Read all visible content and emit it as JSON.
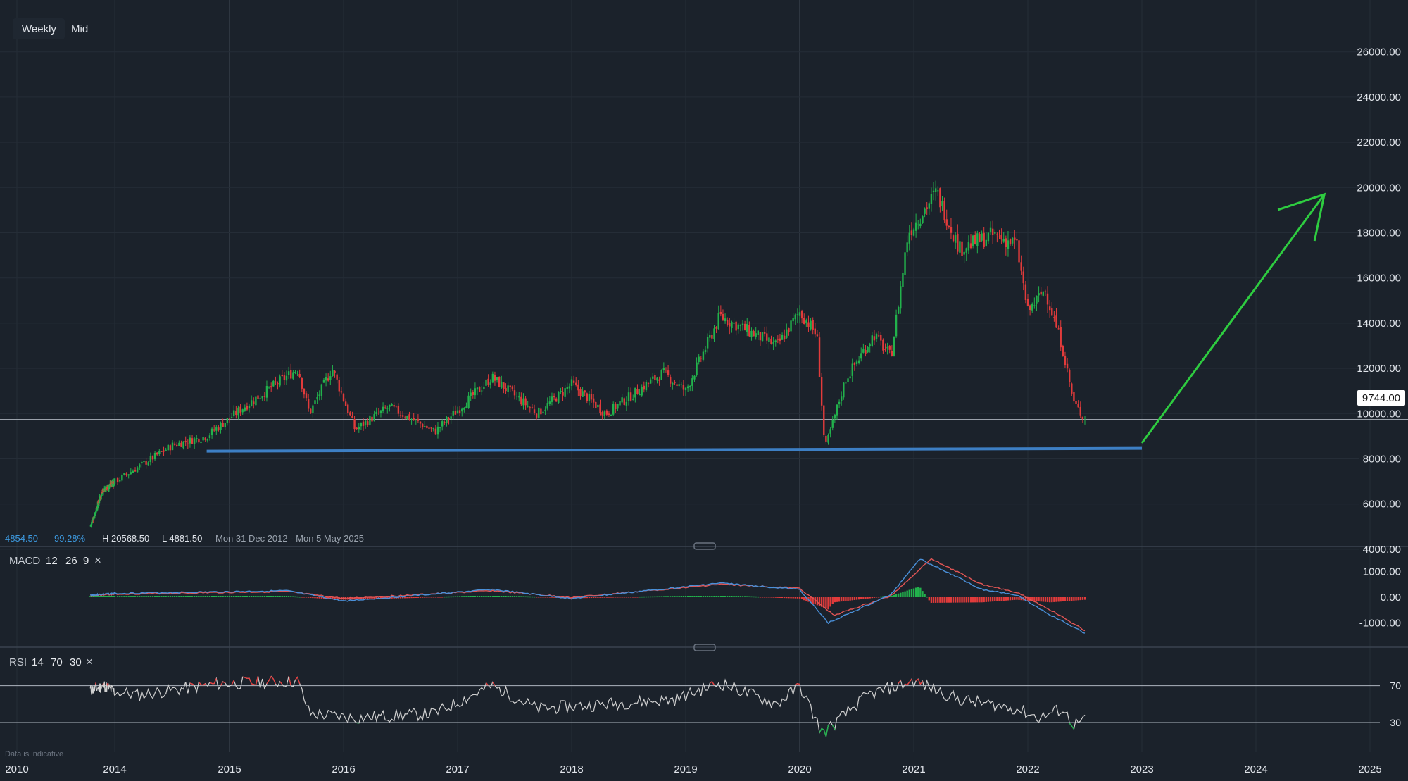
{
  "toolbar": {
    "timeframe": "Weekly",
    "price_type": "Mid"
  },
  "price_info": {
    "last": "4854.50",
    "pct": "99.28%",
    "high": "H 20568.50",
    "low": "L 4881.50",
    "range": "Mon 31 Dec 2012 - Mon 5 May 2025"
  },
  "current_price_label": "9744.00",
  "footer_note": "Data is indicative",
  "indicators": {
    "macd": {
      "name": "MACD",
      "params": [
        "12",
        "26",
        "9"
      ],
      "close": "×"
    },
    "rsi": {
      "name": "RSI",
      "params": [
        "14",
        "70",
        "30"
      ],
      "close": "×"
    }
  },
  "colors": {
    "background": "#1b222b",
    "bull": "#22b24c",
    "bear": "#e23b3b",
    "support_line": "#3d7fc4",
    "arrow": "#2ecc40",
    "macd_line": "#4a90d9",
    "signal_line": "#e25555",
    "rsi_line": "#d0d0d0"
  },
  "chart_data": {
    "type": "candlestick",
    "instrument_timeframe": "Weekly",
    "x_axis": {
      "ticks": [
        "2010",
        "2014",
        "2015",
        "2016",
        "2017",
        "2018",
        "2019",
        "2020",
        "2021",
        "2022",
        "2023",
        "2024",
        "2025"
      ]
    },
    "y_axis": {
      "ticks": [
        "4000.00",
        "6000.00",
        "8000.00",
        "10000.00",
        "12000.00",
        "14000.00",
        "16000.00",
        "18000.00",
        "20000.00",
        "22000.00",
        "24000.00",
        "26000.00"
      ],
      "range": [
        3500,
        27000
      ]
    },
    "price_path": [
      [
        2013.0,
        5000
      ],
      [
        2013.5,
        6600
      ],
      [
        2014.0,
        7000
      ],
      [
        2014.5,
        8600
      ],
      [
        2014.8,
        9000
      ],
      [
        2015.1,
        10200
      ],
      [
        2015.6,
        12000
      ],
      [
        2015.7,
        10000
      ],
      [
        2015.9,
        12000
      ],
      [
        2016.1,
        9300
      ],
      [
        2016.4,
        10300
      ],
      [
        2016.8,
        9200
      ],
      [
        2017.3,
        11600
      ],
      [
        2017.7,
        10000
      ],
      [
        2018.0,
        11300
      ],
      [
        2018.3,
        10000
      ],
      [
        2018.8,
        11800
      ],
      [
        2019.0,
        11000
      ],
      [
        2019.3,
        14300
      ],
      [
        2019.8,
        13000
      ],
      [
        2020.0,
        14500
      ],
      [
        2020.15,
        13500
      ],
      [
        2020.22,
        8400
      ],
      [
        2020.4,
        11500
      ],
      [
        2020.65,
        13500
      ],
      [
        2020.8,
        12500
      ],
      [
        2020.95,
        18000
      ],
      [
        2021.2,
        19800
      ],
      [
        2021.4,
        17300
      ],
      [
        2021.7,
        17900
      ],
      [
        2021.9,
        17500
      ],
      [
        2022.0,
        14500
      ],
      [
        2022.15,
        15500
      ],
      [
        2022.3,
        13000
      ],
      [
        2022.4,
        10500
      ],
      [
        2022.5,
        9744
      ]
    ],
    "high": 20568.5,
    "low": 4881.5,
    "last_price": 9744,
    "support_level": {
      "value": 8400,
      "from": 2014.8,
      "to": 2023.0
    },
    "projection_arrow": {
      "from": [
        2023.0,
        8700
      ],
      "to": [
        2024.6,
        19700
      ]
    },
    "macd": {
      "params": [
        12,
        26,
        9
      ],
      "y_ticks": [
        "1000.00",
        "0.00",
        "-1000.00"
      ],
      "macd_path": [
        [
          2013.0,
          80
        ],
        [
          2015.5,
          250
        ],
        [
          2016.0,
          -150
        ],
        [
          2017.3,
          300
        ],
        [
          2018.0,
          -50
        ],
        [
          2019.3,
          550
        ],
        [
          2020.0,
          300
        ],
        [
          2020.25,
          -1000
        ],
        [
          2020.8,
          100
        ],
        [
          2021.05,
          1500
        ],
        [
          2021.6,
          300
        ],
        [
          2021.9,
          100
        ],
        [
          2022.2,
          -700
        ],
        [
          2022.5,
          -1400
        ]
      ],
      "signal_path": [
        [
          2013.0,
          60
        ],
        [
          2015.5,
          220
        ],
        [
          2016.0,
          -50
        ],
        [
          2017.3,
          250
        ],
        [
          2018.0,
          -10
        ],
        [
          2019.3,
          500
        ],
        [
          2020.0,
          350
        ],
        [
          2020.3,
          -700
        ],
        [
          2020.8,
          50
        ],
        [
          2021.15,
          1500
        ],
        [
          2021.6,
          500
        ],
        [
          2021.9,
          200
        ],
        [
          2022.2,
          -500
        ],
        [
          2022.5,
          -1300
        ]
      ]
    },
    "rsi": {
      "params": [
        14,
        70,
        30
      ],
      "levels": [
        70,
        30
      ],
      "y_ticks": [
        "70",
        "30"
      ],
      "path": [
        [
          2013.0,
          65
        ],
        [
          2013.6,
          70
        ],
        [
          2014.2,
          60
        ],
        [
          2014.9,
          72
        ],
        [
          2015.6,
          75
        ],
        [
          2015.7,
          40
        ],
        [
          2016.1,
          35
        ],
        [
          2016.8,
          40
        ],
        [
          2017.3,
          70
        ],
        [
          2017.7,
          45
        ],
        [
          2018.3,
          50
        ],
        [
          2018.9,
          55
        ],
        [
          2019.3,
          73
        ],
        [
          2019.8,
          50
        ],
        [
          2020.0,
          70
        ],
        [
          2020.2,
          18
        ],
        [
          2020.6,
          60
        ],
        [
          2021.0,
          75
        ],
        [
          2021.4,
          55
        ],
        [
          2021.9,
          45
        ],
        [
          2022.1,
          35
        ],
        [
          2022.3,
          45
        ],
        [
          2022.4,
          28
        ],
        [
          2022.5,
          32
        ]
      ]
    }
  }
}
